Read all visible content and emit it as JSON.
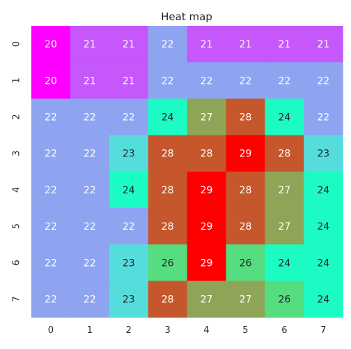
{
  "chart_data": {
    "type": "heatmap",
    "title": "Heat map",
    "xlabel": "",
    "ylabel": "",
    "x_categories": [
      "0",
      "1",
      "2",
      "3",
      "4",
      "5",
      "6",
      "7"
    ],
    "y_categories": [
      "0",
      "1",
      "2",
      "3",
      "4",
      "5",
      "6",
      "7"
    ],
    "values": [
      [
        20,
        21,
        21,
        22,
        21,
        21,
        21,
        21
      ],
      [
        20,
        21,
        21,
        22,
        22,
        22,
        22,
        22
      ],
      [
        22,
        22,
        22,
        24,
        27,
        28,
        24,
        22
      ],
      [
        22,
        22,
        23,
        28,
        28,
        29,
        28,
        23
      ],
      [
        22,
        22,
        24,
        28,
        29,
        28,
        27,
        24
      ],
      [
        22,
        22,
        22,
        28,
        29,
        28,
        27,
        24
      ],
      [
        22,
        22,
        23,
        26,
        29,
        26,
        24,
        24
      ],
      [
        22,
        22,
        23,
        28,
        27,
        27,
        26,
        24
      ]
    ],
    "colormap": "rainbow",
    "colorbar": false
  }
}
